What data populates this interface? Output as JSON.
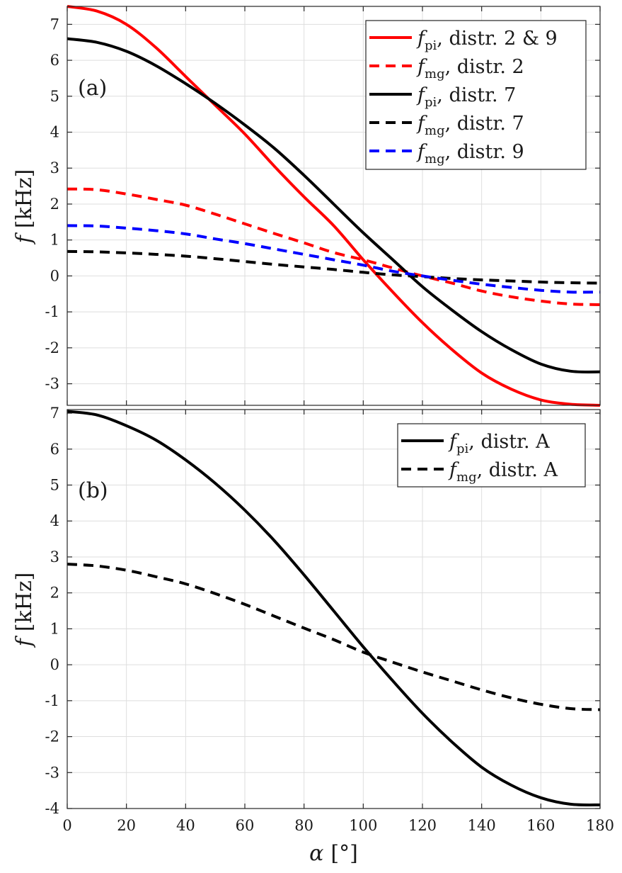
{
  "figure": {
    "xlabel": {
      "symbol": "α",
      "unit": "[°]"
    }
  },
  "chart_data": [
    {
      "type": "line",
      "panel": "(a)",
      "ylabel": {
        "symbol": "f",
        "unit": "[kHz]"
      },
      "xlim": [
        0,
        180
      ],
      "ylim": [
        -3.6,
        7.5
      ],
      "x_ticks": [
        "0",
        "20",
        "40",
        "60",
        "80",
        "100",
        "120",
        "140",
        "160",
        "180"
      ],
      "y_ticks": [
        "7",
        "6",
        "5",
        "4",
        "3",
        "2",
        "1",
        "0",
        "-1",
        "-2",
        "-3"
      ],
      "grid": true,
      "legend_position": "top-right",
      "x": [
        0,
        10,
        20,
        30,
        40,
        50,
        60,
        70,
        80,
        90,
        100,
        110,
        120,
        130,
        140,
        150,
        160,
        170,
        180
      ],
      "series": [
        {
          "sym": "f",
          "sub": "pi",
          "rest": ", distr. 2 & 9",
          "color": "#ff0000",
          "dash": "solid",
          "values": [
            7.5,
            7.37,
            7.0,
            6.35,
            5.55,
            4.75,
            3.95,
            3.05,
            2.2,
            1.4,
            0.45,
            -0.45,
            -1.3,
            -2.05,
            -2.7,
            -3.15,
            -3.45,
            -3.57,
            -3.6
          ]
        },
        {
          "sym": "f",
          "sub": "mg",
          "rest": ", distr. 2",
          "color": "#ff0000",
          "dash": "dashed",
          "values": [
            2.42,
            2.4,
            2.28,
            2.13,
            1.97,
            1.72,
            1.45,
            1.18,
            0.92,
            0.65,
            0.45,
            0.22,
            0.0,
            -0.2,
            -0.42,
            -0.58,
            -0.7,
            -0.78,
            -0.8
          ]
        },
        {
          "sym": "f",
          "sub": "pi",
          "rest": ", distr. 7",
          "color": "#000000",
          "dash": "solid",
          "values": [
            6.6,
            6.5,
            6.25,
            5.85,
            5.35,
            4.8,
            4.2,
            3.55,
            2.8,
            2.0,
            1.2,
            0.45,
            -0.3,
            -0.95,
            -1.55,
            -2.05,
            -2.45,
            -2.65,
            -2.67
          ]
        },
        {
          "sym": "f",
          "sub": "mg",
          "rest": ", distr. 7",
          "color": "#000000",
          "dash": "dashed",
          "values": [
            0.68,
            0.67,
            0.64,
            0.6,
            0.55,
            0.48,
            0.4,
            0.32,
            0.25,
            0.18,
            0.1,
            0.03,
            -0.02,
            -0.07,
            -0.11,
            -0.14,
            -0.17,
            -0.19,
            -0.2
          ]
        },
        {
          "sym": "f",
          "sub": "mg",
          "rest": ", distr. 9",
          "color": "#0000ff",
          "dash": "dashed",
          "values": [
            1.4,
            1.39,
            1.33,
            1.26,
            1.17,
            1.03,
            0.9,
            0.75,
            0.6,
            0.45,
            0.3,
            0.13,
            0.0,
            -0.12,
            -0.23,
            -0.32,
            -0.4,
            -0.45,
            -0.45
          ]
        }
      ]
    },
    {
      "type": "line",
      "panel": "(b)",
      "ylabel": {
        "symbol": "f",
        "unit": "[kHz]"
      },
      "xlim": [
        0,
        180
      ],
      "ylim": [
        -4,
        7.1
      ],
      "x_ticks": [
        "0",
        "20",
        "40",
        "60",
        "80",
        "100",
        "120",
        "140",
        "160",
        "180"
      ],
      "y_ticks": [
        "7",
        "6",
        "5",
        "4",
        "3",
        "2",
        "1",
        "0",
        "-1",
        "-2",
        "-3",
        "-4"
      ],
      "grid": true,
      "legend_position": "top-right",
      "x": [
        0,
        10,
        20,
        30,
        40,
        50,
        60,
        70,
        80,
        90,
        100,
        110,
        120,
        130,
        140,
        150,
        160,
        170,
        180
      ],
      "series": [
        {
          "sym": "f",
          "sub": "pi",
          "rest": ", distr. A",
          "color": "#000000",
          "dash": "solid",
          "values": [
            7.05,
            6.95,
            6.65,
            6.25,
            5.7,
            5.05,
            4.3,
            3.45,
            2.5,
            1.5,
            0.5,
            -0.45,
            -1.35,
            -2.15,
            -2.85,
            -3.35,
            -3.7,
            -3.88,
            -3.9
          ]
        },
        {
          "sym": "f",
          "sub": "mg",
          "rest": ", distr. A",
          "color": "#000000",
          "dash": "dashed",
          "values": [
            2.8,
            2.75,
            2.63,
            2.45,
            2.25,
            1.98,
            1.68,
            1.35,
            1.02,
            0.7,
            0.35,
            0.07,
            -0.2,
            -0.45,
            -0.7,
            -0.92,
            -1.1,
            -1.22,
            -1.25
          ]
        }
      ]
    }
  ]
}
